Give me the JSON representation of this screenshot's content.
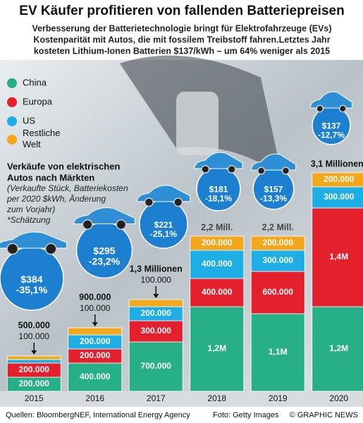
{
  "chart_data": {
    "type": "stacked_bar",
    "title": "EV Käufer profitieren von fallenden Batteriepreisen",
    "subtitle": [
      "Verbesserung der Batterietechnologie bringt für Elektrofahrzeuge (EVs)",
      "Kostenparität mit Autos, die mit fossilem Treibstoff fahren.Letztes Jahr",
      "kosteten Lithium-Ionen Batterien $137/kWh – um 64% weniger als 2015"
    ],
    "chart_title": [
      "Verkäufe von elektrischen",
      "Autos nach Märkten"
    ],
    "chart_note": [
      "(Verkaufte Stück, Batteriekosten",
      "per 2020 $kWh, Änderung",
      "zum Vorjahr)",
      "*Schätzung"
    ],
    "categories": [
      "2015",
      "2016",
      "2017",
      "2018",
      "2019",
      "2020"
    ],
    "ylim": [
      0,
      3100000
    ],
    "series": [
      {
        "name": "China",
        "color": "#27b088",
        "values": [
          200000,
          400000,
          700000,
          1200000,
          1100000,
          1200000
        ],
        "value_labels": [
          "200.000",
          "400.000",
          "700.000",
          "1,2M",
          "1,1M",
          "1,2M"
        ]
      },
      {
        "name": "Europa",
        "color": "#e3202b",
        "values": [
          200000,
          200000,
          300000,
          400000,
          600000,
          1400000
        ],
        "value_labels": [
          "200.000",
          "200.000",
          "300.000",
          "400.000",
          "600.000",
          "1,4M"
        ]
      },
      {
        "name": "US",
        "color": "#1eaee6",
        "values": [
          50000,
          200000,
          200000,
          400000,
          300000,
          300000
        ],
        "value_labels": [
          null,
          "200.000",
          "200.000",
          "400.000",
          "300.000",
          "300.000"
        ]
      },
      {
        "name": "Restliche Welt",
        "color": "#f5a71c",
        "values": [
          50000,
          100000,
          100000,
          200000,
          200000,
          200000
        ],
        "value_labels": [
          null,
          null,
          null,
          "200.000",
          "200.000",
          "200.000"
        ]
      }
    ],
    "totals": [
      {
        "value": 500000,
        "label": "500.000"
      },
      {
        "value": 900000,
        "label": "900.000"
      },
      {
        "value": 1300000,
        "label": "1,3 Millionen"
      },
      {
        "value": 2200000,
        "label": "2,2 Mill."
      },
      {
        "value": 2200000,
        "label": "2,2 Mill."
      },
      {
        "value": 3100000,
        "label": "3,1 Millionen*"
      }
    ],
    "notes": [
      "100.000",
      "100.000",
      "100.000",
      null,
      null,
      null
    ],
    "battery_price": {
      "color": "#1c7fd0",
      "values": [
        384,
        295,
        221,
        181,
        157,
        137
      ],
      "value_labels": [
        "$384",
        "$295",
        "$221",
        "$181",
        "$157",
        "$137"
      ]
    },
    "price_change": {
      "values": [
        -35.1,
        -23.2,
        -25.1,
        -18.1,
        -13.3,
        -12.7
      ],
      "value_labels": [
        "-35,1%",
        "-23,2%",
        "-25,1%",
        "-18,1%",
        "-13,3%",
        "-12,7%"
      ]
    },
    "footer": {
      "source": "Quellen: BloombergNEF, International Energy Agency",
      "photo": "Foto: Getty Images",
      "credit": "© GRAPHIC NEWS"
    }
  }
}
